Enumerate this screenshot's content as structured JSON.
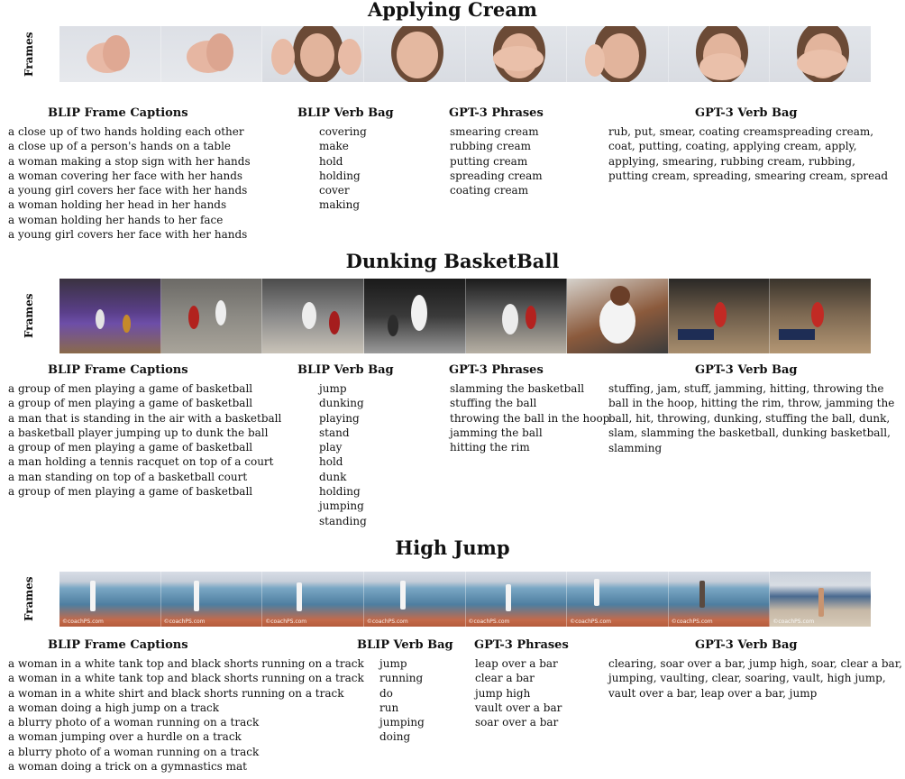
{
  "sections": [
    {
      "title": "Applying Cream",
      "frames_label": "Frames",
      "headers": {
        "captions": "BLIP Frame Captions",
        "verb_bag": "BLIP Verb Bag",
        "phrases": "GPT-3 Phrases",
        "gpt_verb_bag": "GPT-3 Verb Bag"
      },
      "captions": [
        "a close up of two hands holding each other",
        "a close up of a person's hands on a table",
        "a woman making a stop sign with her hands",
        "a woman covering her face with her hands",
        "a young girl covers her face with her hands",
        "a woman holding her head in her hands",
        "a woman holding her hands to her face",
        "a young girl covers her face with her hands"
      ],
      "verb_bag": [
        "covering",
        "make",
        "hold",
        "holding",
        "cover",
        "making"
      ],
      "phrases": [
        "smearing cream",
        "rubbing cream",
        "putting cream",
        "spreading cream",
        "coating cream"
      ],
      "gpt_verb_bag": "rub, put, smear, coating creamspreading cream, coat, putting, coating, applying cream, apply, applying, smearing, rubbing cream, rubbing, putting cream, spreading, smearing cream, spread"
    },
    {
      "title": "Dunking BasketBall",
      "frames_label": "Frames",
      "headers": {
        "captions": "BLIP Frame Captions",
        "verb_bag": "BLIP Verb Bag",
        "phrases": "GPT-3 Phrases",
        "gpt_verb_bag": "GPT-3 Verb Bag"
      },
      "captions": [
        "a group of men playing a game of basketball",
        "a group of men playing a game of basketball",
        "a man that is standing in the air with a basketball",
        "a basketball player jumping up to dunk the ball",
        "a group of men playing a game of basketball",
        "a man holding a tennis racquet on top of a court",
        "a man standing on top of a basketball court",
        "a group of men playing a game of basketball"
      ],
      "verb_bag": [
        "jump",
        "dunking",
        "playing",
        "stand",
        "play",
        "hold",
        "dunk",
        "holding",
        "jumping",
        "standing"
      ],
      "phrases": [
        "slamming the basketball",
        "stuffing the ball",
        "throwing the ball in the hoop",
        "jamming the ball",
        "hitting the rim"
      ],
      "gpt_verb_bag": "stuffing, jam, stuff, jamming, hitting, throwing the ball in the hoop, hitting the rim, throw, jamming the ball, hit, throwing, dunking, stuffing the ball, dunk, slam, slamming the basketball, dunking basketball, slamming"
    },
    {
      "title": "High Jump",
      "frames_label": "Frames",
      "headers": {
        "captions": "BLIP Frame Captions",
        "verb_bag": "BLIP Verb Bag",
        "phrases": "GPT-3 Phrases",
        "gpt_verb_bag": "GPT-3 Verb Bag"
      },
      "captions": [
        "a woman in a white tank top and black shorts running on a track",
        "a woman in a white tank top and black shorts running on a track",
        "a woman in a white shirt and black shorts running on a track",
        "a woman doing a high jump on a track",
        "a blurry photo of a woman running on a track",
        "a woman jumping over a hurdle on a track",
        "a blurry photo of a woman running on a track",
        "a woman doing a trick on a gymnastics mat"
      ],
      "verb_bag": [
        "jump",
        "running",
        "do",
        "run",
        "jumping",
        "doing"
      ],
      "phrases": [
        "leap over a bar",
        "clear a bar",
        "jump high",
        "vault over a bar",
        "soar over a bar"
      ],
      "gpt_verb_bag": "clearing, soar over a bar, jump high, soar, clear a bar, jumping, vaulting, clear, soaring, vault, high jump, vault over a bar, leap over a bar, jump"
    }
  ]
}
